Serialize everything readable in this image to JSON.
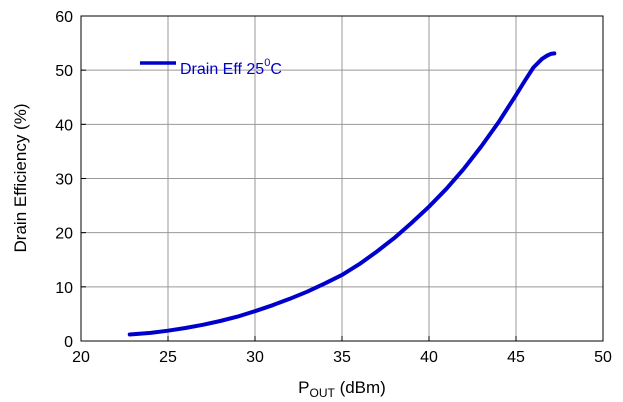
{
  "chart_data": {
    "type": "line",
    "xlabel": {
      "main": "P",
      "sub": "OUT",
      "unit": " (dBm)"
    },
    "ylabel": "Drain Efficiency (%)",
    "xlim": [
      20,
      50
    ],
    "ylim": [
      0,
      60
    ],
    "xticks": [
      20,
      25,
      30,
      35,
      40,
      45,
      50
    ],
    "yticks": [
      0,
      10,
      20,
      30,
      40,
      50,
      60
    ],
    "grid": true,
    "legend_position": "top-left",
    "series": [
      {
        "name": "Drain Eff 25⁰C",
        "legend": {
          "main": "Drain Eff 25",
          "sup": "0",
          "tail": "C"
        },
        "color": "#0000cc",
        "x": [
          22.8,
          24,
          25,
          26,
          27,
          28,
          29,
          30,
          31,
          32,
          33,
          34,
          35,
          36,
          37,
          38,
          39,
          40,
          41,
          42,
          43,
          44,
          45,
          45.5,
          46,
          46.5,
          46.8,
          47.0,
          47.2
        ],
        "y": [
          1.2,
          1.5,
          1.9,
          2.4,
          3.0,
          3.7,
          4.5,
          5.5,
          6.6,
          7.8,
          9.1,
          10.6,
          12.2,
          14.2,
          16.5,
          19.0,
          21.8,
          24.8,
          28.1,
          31.8,
          35.9,
          40.4,
          45.4,
          48.0,
          50.5,
          52.1,
          52.7,
          53.0,
          53.1
        ]
      }
    ]
  }
}
